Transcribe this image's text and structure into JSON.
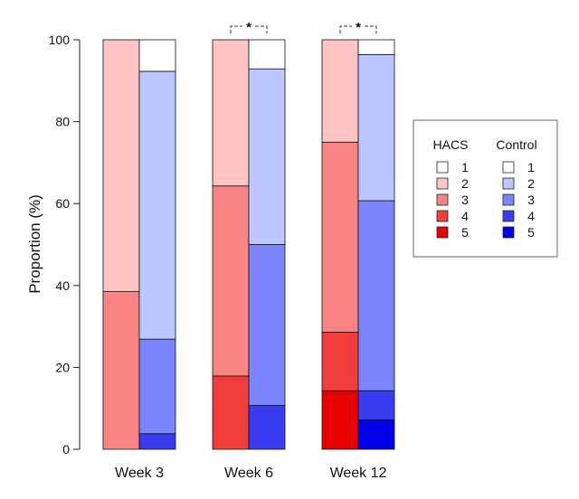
{
  "chart_data": {
    "type": "bar",
    "stacked": true,
    "ylabel": "Proportion (%)",
    "ylim": [
      0,
      100
    ],
    "yticks": [
      "0",
      "20",
      "40",
      "60",
      "80",
      "100"
    ],
    "categories": [
      "Week 3",
      "Week 6",
      "Week 12"
    ],
    "significance": [
      "",
      "*",
      "*"
    ],
    "levels": [
      "1",
      "2",
      "3",
      "4",
      "5"
    ],
    "series": [
      {
        "name": "HACS",
        "colors": [
          "#ffffff",
          "#ffc4c4",
          "#f98484",
          "#f23d3d",
          "#e80000"
        ],
        "values": {
          "1": [
            0,
            0,
            0
          ],
          "2": [
            61.5,
            35.7,
            25
          ],
          "3": [
            38.5,
            46.4,
            46.4
          ],
          "4": [
            0,
            17.9,
            14.3
          ],
          "5": [
            0,
            0,
            14.3
          ]
        }
      },
      {
        "name": "Control",
        "colors": [
          "#ffffff",
          "#bcc6ff",
          "#7b84fa",
          "#3a3cf2",
          "#0000ea"
        ],
        "values": {
          "1": [
            7.7,
            7.1,
            3.6
          ],
          "2": [
            65.4,
            42.9,
            35.7
          ],
          "3": [
            23.1,
            39.3,
            46.4
          ],
          "4": [
            3.8,
            10.7,
            7.1
          ],
          "5": [
            0,
            0,
            7.2
          ]
        }
      }
    ],
    "legend": {
      "position": "right",
      "group_titles": [
        "HACS",
        "Control"
      ],
      "labels": [
        "1",
        "2",
        "3",
        "4",
        "5"
      ]
    }
  }
}
